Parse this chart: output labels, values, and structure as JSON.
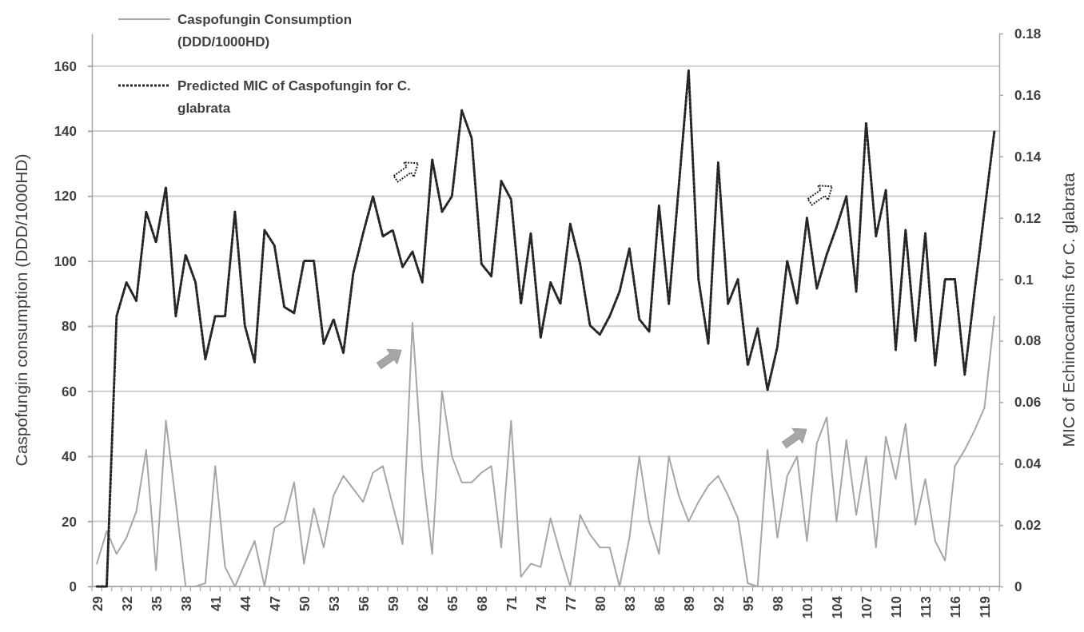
{
  "chart_data": {
    "type": "line",
    "ylabel": "Caspofungin consumption (DDD/1000HD)",
    "y2label": "MIC of Echinocandins for C. glabrata",
    "categories": [
      "29",
      null,
      null,
      "32",
      null,
      null,
      "35",
      null,
      null,
      "38",
      null,
      null,
      "41",
      null,
      null,
      "44",
      null,
      null,
      "47",
      null,
      null,
      "50",
      null,
      null,
      "53",
      null,
      null,
      "56",
      null,
      null,
      "59",
      null,
      null,
      "62",
      null,
      null,
      "65",
      null,
      null,
      "68",
      null,
      null,
      "71",
      null,
      null,
      "74",
      null,
      null,
      "77",
      null,
      null,
      "80",
      null,
      null,
      "83",
      null,
      null,
      "86",
      null,
      null,
      "89",
      null,
      null,
      "92",
      null,
      null,
      "95",
      null,
      null,
      "98",
      null,
      null,
      "101",
      null,
      null,
      "104",
      null,
      null,
      "107",
      null,
      null,
      "110",
      null,
      null,
      "113",
      null,
      null,
      "116",
      null,
      null,
      "119",
      null
    ],
    "series": [
      {
        "name": "Caspofungin Consumption (DDD/1000HD)",
        "color": "#a6a6a6",
        "line_style": "solid",
        "values": [
          7,
          17,
          10,
          15,
          23,
          42,
          5,
          51,
          26,
          0,
          0,
          1,
          37,
          6,
          0,
          7,
          14,
          0,
          18,
          20,
          32,
          7,
          24,
          12,
          28,
          34,
          30,
          26,
          35,
          37,
          25,
          13,
          81,
          36,
          10,
          60,
          40,
          32,
          32,
          35,
          37,
          12,
          51,
          3,
          7,
          6,
          21,
          10,
          0,
          22,
          16,
          12,
          12,
          0,
          15,
          40,
          20,
          10,
          40,
          28,
          20,
          26,
          31,
          34,
          28,
          21,
          1,
          0,
          42,
          15,
          34,
          40,
          14,
          44,
          52,
          20,
          45,
          22,
          40,
          12,
          46,
          33,
          50,
          19,
          33,
          14,
          8,
          37,
          42,
          48,
          55,
          83
        ]
      },
      {
        "name": "Predicted MIC of Caspofungin for C. glabrata",
        "color": "#262626",
        "line_style": "dotted",
        "axis": "y2",
        "values": [
          0,
          0,
          0.088,
          0.099,
          0.093,
          0.122,
          0.112,
          0.13,
          0.088,
          0.108,
          0.099,
          0.074,
          0.088,
          0.088,
          0.122,
          0.085,
          0.073,
          0.116,
          0.111,
          0.091,
          0.089,
          0.106,
          0.106,
          0.079,
          0.087,
          0.076,
          0.102,
          0.115,
          0.127,
          0.114,
          0.116,
          0.104,
          0.109,
          0.099,
          0.139,
          0.122,
          0.127,
          0.155,
          0.146,
          0.105,
          0.101,
          0.132,
          0.126,
          0.092,
          0.115,
          0.081,
          0.099,
          0.092,
          0.118,
          0.105,
          0.085,
          0.082,
          0.088,
          0.096,
          0.11,
          0.087,
          0.083,
          0.124,
          0.092,
          0.13,
          0.168,
          0.1,
          0.079,
          0.138,
          0.092,
          0.1,
          0.072,
          0.084,
          0.064,
          0.078,
          0.106,
          0.092,
          0.12,
          0.097,
          0.108,
          0.117,
          0.127,
          0.096,
          0.151,
          0.114,
          0.129,
          0.077,
          0.116,
          0.08,
          0.115,
          0.072,
          0.1,
          0.1,
          0.069,
          0.096,
          0.122,
          0.148
        ]
      }
    ],
    "ylim": [
      0,
      170
    ],
    "yticks": [
      0,
      20,
      40,
      60,
      80,
      100,
      120,
      140,
      160
    ],
    "y2lim": [
      0,
      0.18
    ],
    "y2ticks": [
      0,
      0.02,
      0.04,
      0.06,
      0.08,
      0.1,
      0.12,
      0.14,
      0.16,
      0.18
    ],
    "grid": "y",
    "legend": "top left"
  }
}
